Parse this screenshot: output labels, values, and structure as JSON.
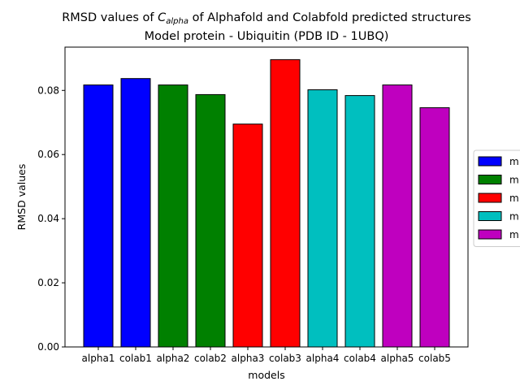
{
  "chart_data": {
    "type": "bar",
    "title_line1_prefix": "RMSD values of ",
    "title_line1_math_main": "C",
    "title_line1_math_sub": "alpha",
    "title_line1_suffix": " of Alphafold and Colabfold predicted structures",
    "title_line2": "Model protein - Ubiquitin (PDB ID - 1UBQ)",
    "xlabel": "models",
    "ylabel": "RMSD values",
    "categories": [
      "alpha1",
      "colab1",
      "alpha2",
      "colab2",
      "alpha3",
      "colab3",
      "alpha4",
      "colab4",
      "alpha5",
      "colab5"
    ],
    "values": [
      0.0817,
      0.0837,
      0.0817,
      0.0787,
      0.0695,
      0.0896,
      0.0802,
      0.0784,
      0.0817,
      0.0746
    ],
    "bar_colors": [
      "#0000ff",
      "#0000ff",
      "#008000",
      "#008000",
      "#ff0000",
      "#ff0000",
      "#00bfbf",
      "#00bfbf",
      "#bf00bf",
      "#bf00bf"
    ],
    "ylim": [
      0,
      0.0935
    ],
    "yticks": [
      "0.00",
      "0.02",
      "0.04",
      "0.06",
      "0.08"
    ],
    "ytick_values": [
      0,
      0.02,
      0.04,
      0.06,
      0.08
    ],
    "legend": {
      "placement": "right",
      "entries": [
        {
          "label": "m",
          "color": "#0000ff"
        },
        {
          "label": "m",
          "color": "#008000"
        },
        {
          "label": "m",
          "color": "#ff0000"
        },
        {
          "label": "m",
          "color": "#00bfbf"
        },
        {
          "label": "m",
          "color": "#bf00bf"
        }
      ]
    },
    "grid": false
  }
}
